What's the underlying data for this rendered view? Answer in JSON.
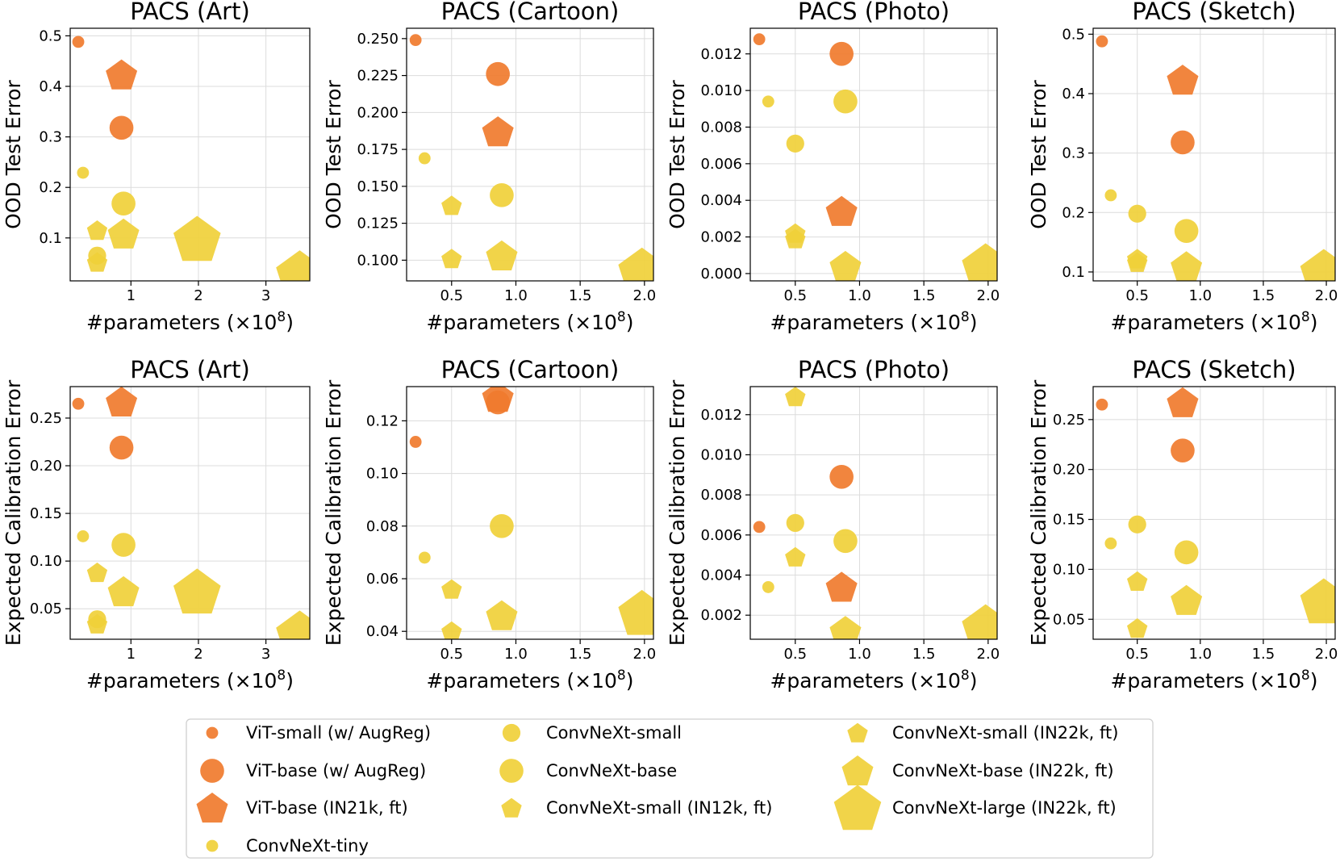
{
  "series_styles": {
    "vit_small_augreg": {
      "label": "ViT-small (w/ AugReg)",
      "shape": "circle",
      "color": "#f07b2e",
      "size": 1
    },
    "vit_base_augreg": {
      "label": "ViT-base (w/ AugReg)",
      "shape": "circle",
      "color": "#f07b2e",
      "size": 2
    },
    "vit_base_in21k": {
      "label": "ViT-base (IN21k, ft)",
      "shape": "pentagon",
      "color": "#f07b2e",
      "size": 2
    },
    "convnext_tiny": {
      "label": "ConvNeXt-tiny",
      "shape": "circle",
      "color": "#f0d03a",
      "size": 1
    },
    "convnext_small": {
      "label": "ConvNeXt-small",
      "shape": "circle",
      "color": "#f0d03a",
      "size": 1.5
    },
    "convnext_base": {
      "label": "ConvNeXt-base",
      "shape": "circle",
      "color": "#f0d03a",
      "size": 2
    },
    "convnext_small_in12k": {
      "label": "ConvNeXt-small (IN12k, ft)",
      "shape": "pentagon",
      "color": "#f0d03a",
      "size": 1.3
    },
    "convnext_small_in22k": {
      "label": "ConvNeXt-small (IN22k, ft)",
      "shape": "pentagon",
      "color": "#f0d03a",
      "size": 1.3
    },
    "convnext_base_in22k": {
      "label": "ConvNeXt-base (IN22k, ft)",
      "shape": "pentagon",
      "color": "#f0d03a",
      "size": 2
    },
    "convnext_large_in22k": {
      "label": "ConvNeXt-large (IN22k, ft)",
      "shape": "pentagon",
      "color": "#f0d03a",
      "size": 3
    }
  },
  "legend_order": [
    "vit_small_augreg",
    "convnext_small",
    "convnext_small_in22k",
    "vit_base_augreg",
    "convnext_base",
    "convnext_base_in22k",
    "vit_base_in21k",
    "convnext_small_in12k",
    "convnext_large_in22k",
    "convnext_tiny"
  ],
  "chart_data": [
    {
      "type": "scatter",
      "title": "PACS (Art)",
      "xlabel": "#parameters (×10",
      "xlabel_sup": "8",
      "xlabel_end": ")",
      "ylabel": "OOD Test Error",
      "xlim": [
        0.1,
        3.65
      ],
      "ylim": [
        0.015,
        0.515
      ],
      "xticks": [
        1,
        2,
        3
      ],
      "xtick_labels": [
        "1",
        "2",
        "3"
      ],
      "yticks": [
        0.1,
        0.2,
        0.3,
        0.4,
        0.5
      ],
      "ytick_labels": [
        "0.1",
        "0.2",
        "0.3",
        "0.4",
        "0.5"
      ],
      "points": [
        {
          "model": "vit_small_augreg",
          "x": 0.22,
          "y": 0.488
        },
        {
          "model": "vit_base_augreg",
          "x": 0.86,
          "y": 0.318
        },
        {
          "model": "vit_base_in21k",
          "x": 0.86,
          "y": 0.423
        },
        {
          "model": "convnext_tiny",
          "x": 0.29,
          "y": 0.229
        },
        {
          "model": "convnext_small",
          "x": 0.5,
          "y": 0.065
        },
        {
          "model": "convnext_base",
          "x": 0.89,
          "y": 0.168
        },
        {
          "model": "convnext_small_in12k",
          "x": 0.5,
          "y": 0.115
        },
        {
          "model": "convnext_small_in22k",
          "x": 0.5,
          "y": 0.052
        },
        {
          "model": "convnext_base_in22k",
          "x": 0.89,
          "y": 0.108
        },
        {
          "model": "convnext_large_in22k",
          "x": 1.98,
          "y": 0.098
        },
        {
          "model": "convnext_large_in22k",
          "x": 3.5,
          "y": 0.03
        }
      ]
    },
    {
      "type": "scatter",
      "title": "PACS (Cartoon)",
      "xlabel": "#parameters (×10",
      "xlabel_sup": "8",
      "xlabel_end": ")",
      "ylabel": "OOD Test Error",
      "xlim": [
        0.15,
        2.07
      ],
      "ylim": [
        0.086,
        0.257
      ],
      "xticks": [
        0.5,
        1.0,
        1.5,
        2.0
      ],
      "xtick_labels": [
        "0.5",
        "1.0",
        "1.5",
        "2.0"
      ],
      "yticks": [
        0.1,
        0.125,
        0.15,
        0.175,
        0.2,
        0.225,
        0.25
      ],
      "ytick_labels": [
        "0.100",
        "0.125",
        "0.150",
        "0.175",
        "0.200",
        "0.225",
        "0.250"
      ],
      "points": [
        {
          "model": "vit_small_augreg",
          "x": 0.22,
          "y": 0.249
        },
        {
          "model": "vit_base_augreg",
          "x": 0.86,
          "y": 0.226
        },
        {
          "model": "vit_base_in21k",
          "x": 0.86,
          "y": 0.187
        },
        {
          "model": "convnext_tiny",
          "x": 0.29,
          "y": 0.169
        },
        {
          "model": "convnext_base",
          "x": 0.89,
          "y": 0.144
        },
        {
          "model": "convnext_small_in12k",
          "x": 0.5,
          "y": 0.137
        },
        {
          "model": "convnext_small_in22k",
          "x": 0.5,
          "y": 0.101
        },
        {
          "model": "convnext_base_in22k",
          "x": 0.89,
          "y": 0.103
        },
        {
          "model": "convnext_large_in22k",
          "x": 1.98,
          "y": 0.093
        }
      ]
    },
    {
      "type": "scatter",
      "title": "PACS (Photo)",
      "xlabel": "#parameters (×10",
      "xlabel_sup": "8",
      "xlabel_end": ")",
      "ylabel": "OOD Test Error",
      "xlim": [
        0.15,
        2.07
      ],
      "ylim": [
        -0.0004,
        0.0134
      ],
      "xticks": [
        0.5,
        1.0,
        1.5,
        2.0
      ],
      "xtick_labels": [
        "0.5",
        "1.0",
        "1.5",
        "2.0"
      ],
      "yticks": [
        0,
        0.002,
        0.004,
        0.006,
        0.008,
        0.01,
        0.012
      ],
      "ytick_labels": [
        "0.000",
        "0.002",
        "0.004",
        "0.006",
        "0.008",
        "0.010",
        "0.012"
      ],
      "points": [
        {
          "model": "vit_small_augreg",
          "x": 0.22,
          "y": 0.0128
        },
        {
          "model": "vit_base_augreg",
          "x": 0.86,
          "y": 0.012
        },
        {
          "model": "vit_base_in21k",
          "x": 0.86,
          "y": 0.0034
        },
        {
          "model": "convnext_tiny",
          "x": 0.29,
          "y": 0.0094
        },
        {
          "model": "convnext_small",
          "x": 0.5,
          "y": 0.0071
        },
        {
          "model": "convnext_base",
          "x": 0.89,
          "y": 0.0094
        },
        {
          "model": "convnext_small_in12k",
          "x": 0.5,
          "y": 0.0022
        },
        {
          "model": "convnext_small_in22k",
          "x": 0.5,
          "y": 0.0019
        },
        {
          "model": "convnext_base_in22k",
          "x": 0.89,
          "y": 0.0004
        },
        {
          "model": "convnext_large_in22k",
          "x": 1.98,
          "y": 0.0004
        }
      ]
    },
    {
      "type": "scatter",
      "title": "PACS (Sketch)",
      "xlabel": "#parameters (×10",
      "xlabel_sup": "8",
      "xlabel_end": ")",
      "ylabel": "OOD Test Error",
      "xlim": [
        0.15,
        2.07
      ],
      "ylim": [
        0.085,
        0.51
      ],
      "xticks": [
        0.5,
        1.0,
        1.5,
        2.0
      ],
      "xtick_labels": [
        "0.5",
        "1.0",
        "1.5",
        "2.0"
      ],
      "yticks": [
        0.1,
        0.2,
        0.3,
        0.4,
        0.5
      ],
      "ytick_labels": [
        "0.1",
        "0.2",
        "0.3",
        "0.4",
        "0.5"
      ],
      "points": [
        {
          "model": "vit_small_augreg",
          "x": 0.22,
          "y": 0.488
        },
        {
          "model": "vit_base_augreg",
          "x": 0.86,
          "y": 0.318
        },
        {
          "model": "vit_base_in21k",
          "x": 0.86,
          "y": 0.423
        },
        {
          "model": "convnext_tiny",
          "x": 0.29,
          "y": 0.229
        },
        {
          "model": "convnext_small",
          "x": 0.5,
          "y": 0.198
        },
        {
          "model": "convnext_base",
          "x": 0.89,
          "y": 0.169
        },
        {
          "model": "convnext_small_in12k",
          "x": 0.5,
          "y": 0.122
        },
        {
          "model": "convnext_small_in22k",
          "x": 0.5,
          "y": 0.116
        },
        {
          "model": "convnext_base_in22k",
          "x": 0.89,
          "y": 0.109
        },
        {
          "model": "convnext_large_in22k",
          "x": 1.98,
          "y": 0.1
        }
      ]
    },
    {
      "type": "scatter",
      "title": "PACS (Art)",
      "xlabel": "#parameters (×10",
      "xlabel_sup": "8",
      "xlabel_end": ")",
      "ylabel": "Expected Calibration Error",
      "xlim": [
        0.1,
        3.65
      ],
      "ylim": [
        0.018,
        0.283
      ],
      "xticks": [
        1,
        2,
        3
      ],
      "xtick_labels": [
        "1",
        "2",
        "3"
      ],
      "yticks": [
        0.05,
        0.1,
        0.15,
        0.2,
        0.25
      ],
      "ytick_labels": [
        "0.05",
        "0.10",
        "0.15",
        "0.20",
        "0.25"
      ],
      "points": [
        {
          "model": "vit_small_augreg",
          "x": 0.22,
          "y": 0.265
        },
        {
          "model": "vit_base_augreg",
          "x": 0.86,
          "y": 0.219
        },
        {
          "model": "vit_base_in21k",
          "x": 0.86,
          "y": 0.267
        },
        {
          "model": "convnext_tiny",
          "x": 0.29,
          "y": 0.126
        },
        {
          "model": "convnext_small",
          "x": 0.5,
          "y": 0.039
        },
        {
          "model": "convnext_base",
          "x": 0.89,
          "y": 0.117
        },
        {
          "model": "convnext_small_in12k",
          "x": 0.5,
          "y": 0.088
        },
        {
          "model": "convnext_small_in22k",
          "x": 0.5,
          "y": 0.034
        },
        {
          "model": "convnext_base_in22k",
          "x": 0.89,
          "y": 0.068
        },
        {
          "model": "convnext_large_in22k",
          "x": 1.98,
          "y": 0.068
        },
        {
          "model": "convnext_large_in22k",
          "x": 3.5,
          "y": 0.024
        }
      ]
    },
    {
      "type": "scatter",
      "title": "PACS (Cartoon)",
      "xlabel": "#parameters (×10",
      "xlabel_sup": "8",
      "xlabel_end": ")",
      "ylabel": "Expected Calibration Error",
      "xlim": [
        0.15,
        2.07
      ],
      "ylim": [
        0.037,
        0.133
      ],
      "xticks": [
        0.5,
        1.0,
        1.5,
        2.0
      ],
      "xtick_labels": [
        "0.5",
        "1.0",
        "1.5",
        "2.0"
      ],
      "yticks": [
        0.04,
        0.06,
        0.08,
        0.1,
        0.12
      ],
      "ytick_labels": [
        "0.04",
        "0.06",
        "0.08",
        "0.10",
        "0.12"
      ],
      "points": [
        {
          "model": "vit_small_augreg",
          "x": 0.22,
          "y": 0.112
        },
        {
          "model": "vit_base_augreg",
          "x": 0.86,
          "y": 0.127
        },
        {
          "model": "vit_base_in21k",
          "x": 0.86,
          "y": 0.129
        },
        {
          "model": "convnext_tiny",
          "x": 0.29,
          "y": 0.068
        },
        {
          "model": "convnext_base",
          "x": 0.89,
          "y": 0.08
        },
        {
          "model": "convnext_small_in12k",
          "x": 0.5,
          "y": 0.056
        },
        {
          "model": "convnext_small_in22k",
          "x": 0.5,
          "y": 0.04
        },
        {
          "model": "convnext_base_in22k",
          "x": 0.89,
          "y": 0.046
        },
        {
          "model": "convnext_large_in22k",
          "x": 1.98,
          "y": 0.047
        }
      ]
    },
    {
      "type": "scatter",
      "title": "PACS (Photo)",
      "xlabel": "#parameters (×10",
      "xlabel_sup": "8",
      "xlabel_end": ")",
      "ylabel": "Expected Calibration Error",
      "xlim": [
        0.15,
        2.07
      ],
      "ylim": [
        0.0008,
        0.0134
      ],
      "xticks": [
        0.5,
        1.0,
        1.5,
        2.0
      ],
      "xtick_labels": [
        "0.5",
        "1.0",
        "1.5",
        "2.0"
      ],
      "yticks": [
        0.002,
        0.004,
        0.006,
        0.008,
        0.01,
        0.012
      ],
      "ytick_labels": [
        "0.002",
        "0.004",
        "0.006",
        "0.008",
        "0.010",
        "0.012"
      ],
      "points": [
        {
          "model": "vit_small_augreg",
          "x": 0.22,
          "y": 0.0064
        },
        {
          "model": "vit_base_augreg",
          "x": 0.86,
          "y": 0.0089
        },
        {
          "model": "vit_base_in21k",
          "x": 0.86,
          "y": 0.0034
        },
        {
          "model": "convnext_tiny",
          "x": 0.29,
          "y": 0.0034
        },
        {
          "model": "convnext_small",
          "x": 0.5,
          "y": 0.0066
        },
        {
          "model": "convnext_base",
          "x": 0.89,
          "y": 0.0057
        },
        {
          "model": "convnext_small_in12k",
          "x": 0.5,
          "y": 0.0129
        },
        {
          "model": "convnext_small_in22k",
          "x": 0.5,
          "y": 0.0049
        },
        {
          "model": "convnext_base_in22k",
          "x": 0.89,
          "y": 0.0012
        },
        {
          "model": "convnext_large_in22k",
          "x": 1.98,
          "y": 0.0014
        }
      ]
    },
    {
      "type": "scatter",
      "title": "PACS (Sketch)",
      "xlabel": "#parameters (×10",
      "xlabel_sup": "8",
      "xlabel_end": ")",
      "ylabel": "Expected Calibration Error",
      "xlim": [
        0.15,
        2.07
      ],
      "ylim": [
        0.03,
        0.283
      ],
      "xticks": [
        0.5,
        1.0,
        1.5,
        2.0
      ],
      "xtick_labels": [
        "0.5",
        "1.0",
        "1.5",
        "2.0"
      ],
      "yticks": [
        0.05,
        0.1,
        0.15,
        0.2,
        0.25
      ],
      "ytick_labels": [
        "0.05",
        "0.10",
        "0.15",
        "0.20",
        "0.25"
      ],
      "points": [
        {
          "model": "vit_small_augreg",
          "x": 0.22,
          "y": 0.265
        },
        {
          "model": "vit_base_augreg",
          "x": 0.86,
          "y": 0.219
        },
        {
          "model": "vit_base_in21k",
          "x": 0.86,
          "y": 0.267
        },
        {
          "model": "convnext_tiny",
          "x": 0.29,
          "y": 0.126
        },
        {
          "model": "convnext_small",
          "x": 0.5,
          "y": 0.145
        },
        {
          "model": "convnext_base",
          "x": 0.89,
          "y": 0.117
        },
        {
          "model": "convnext_small_in12k",
          "x": 0.5,
          "y": 0.088
        },
        {
          "model": "convnext_small_in22k",
          "x": 0.5,
          "y": 0.041
        },
        {
          "model": "convnext_base_in22k",
          "x": 0.89,
          "y": 0.069
        },
        {
          "model": "convnext_large_in22k",
          "x": 1.98,
          "y": 0.068
        }
      ]
    }
  ]
}
